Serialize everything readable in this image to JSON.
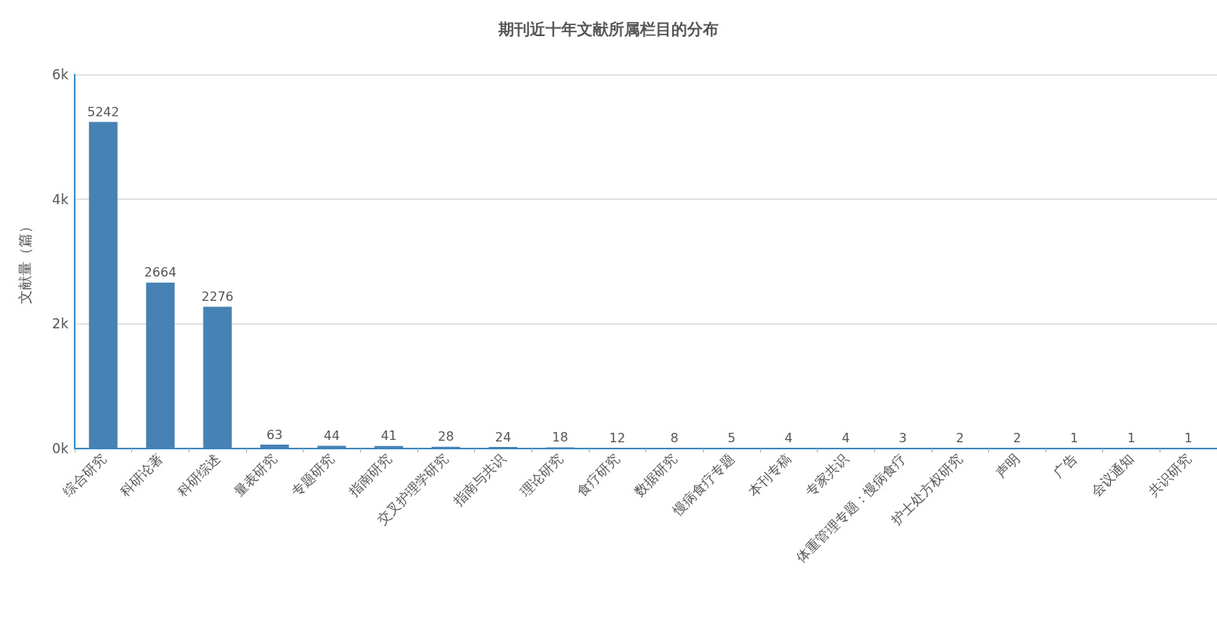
{
  "chart_data": {
    "type": "bar",
    "title": "期刊近十年文献所属栏目的分布",
    "ylabel": "文献量（篇）",
    "categories": [
      "综合研究",
      "科研论著",
      "科研综述",
      "量表研究",
      "专题研究",
      "指南研究",
      "交叉护理学研究",
      "指南与共识",
      "理论研究",
      "食疗研究",
      "数据研究",
      "慢病食疗专题",
      "本刊专稿",
      "专家共识",
      "体重管理专题：慢病食疗",
      "护士处方权研究",
      "声明",
      "广告",
      "会议通知",
      "共识研究"
    ],
    "values": [
      5242,
      2664,
      2276,
      63,
      44,
      41,
      28,
      24,
      18,
      12,
      8,
      5,
      4,
      4,
      3,
      2,
      2,
      1,
      1,
      1
    ],
    "color": "#4682b4",
    "ylim": [
      0,
      6000
    ],
    "yticks": [
      {
        "value": 0,
        "label": "0k"
      },
      {
        "value": 2000,
        "label": "2k"
      },
      {
        "value": 4000,
        "label": "4k"
      },
      {
        "value": 6000,
        "label": "6k"
      }
    ],
    "grid": "y",
    "data_labels": true
  }
}
